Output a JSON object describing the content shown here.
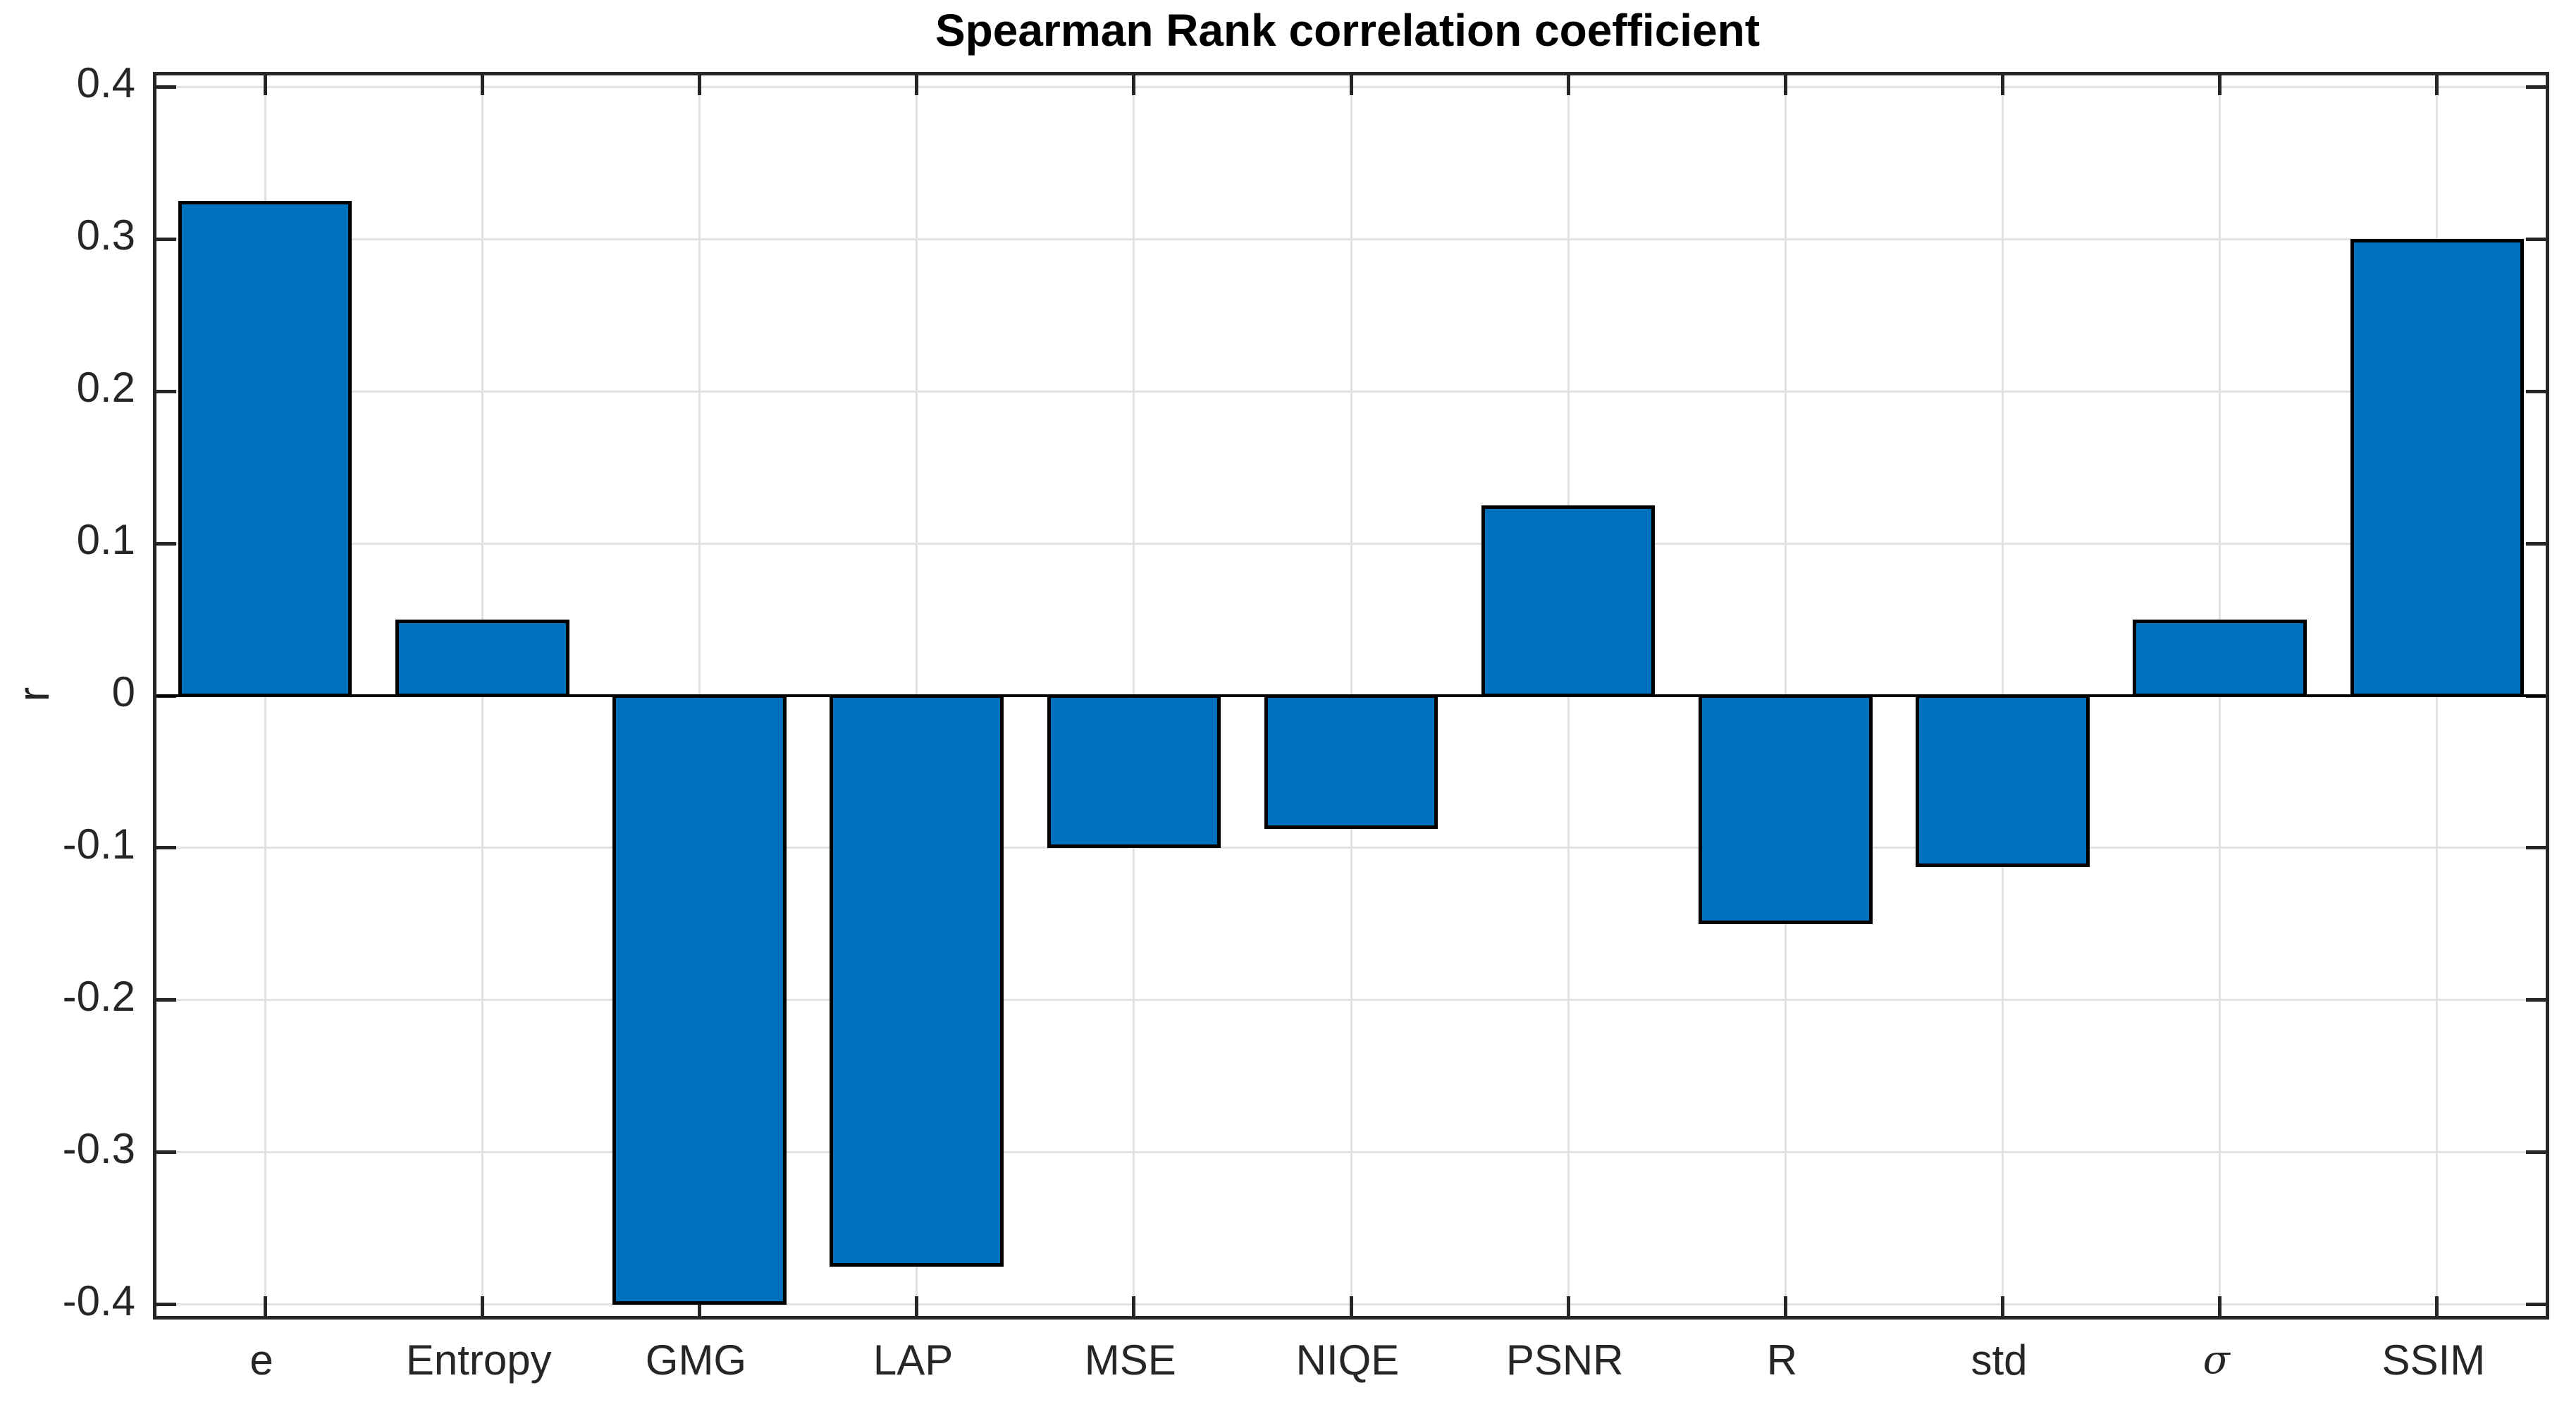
{
  "chart_data": {
    "type": "bar",
    "title": "Spearman Rank correlation coefficient",
    "ylabel": "r",
    "xlabel": "",
    "categories": [
      "e",
      "Entropy",
      "GMG",
      "LAP",
      "MSE",
      "NIQE",
      "PSNR",
      "R",
      "std",
      "σ",
      "SSIM"
    ],
    "values": [
      0.325,
      0.05,
      -0.4,
      -0.375,
      -0.1,
      -0.0875,
      0.125,
      -0.15,
      -0.1125,
      0.05,
      0.3
    ],
    "ytick_values": [
      0.4,
      0.3,
      0.2,
      0.1,
      0,
      -0.1,
      -0.2,
      -0.3,
      -0.4
    ],
    "ytick_labels": [
      "0.4",
      "0.3",
      "0.2",
      "0.1",
      "0",
      "-0.1",
      "-0.2",
      "-0.3",
      "-0.4"
    ],
    "ylim": [
      -0.4075,
      0.4075
    ],
    "grid": true,
    "legend_position": "none",
    "bar_width_frac": 0.8,
    "italic_categories": [
      "σ"
    ],
    "colors": {
      "bar_fill": "#0072BD",
      "bar_edge": "#000000",
      "axis": "#262626",
      "grid": "#e2e2e2",
      "baseline": "#000000",
      "text": "#262626"
    }
  }
}
